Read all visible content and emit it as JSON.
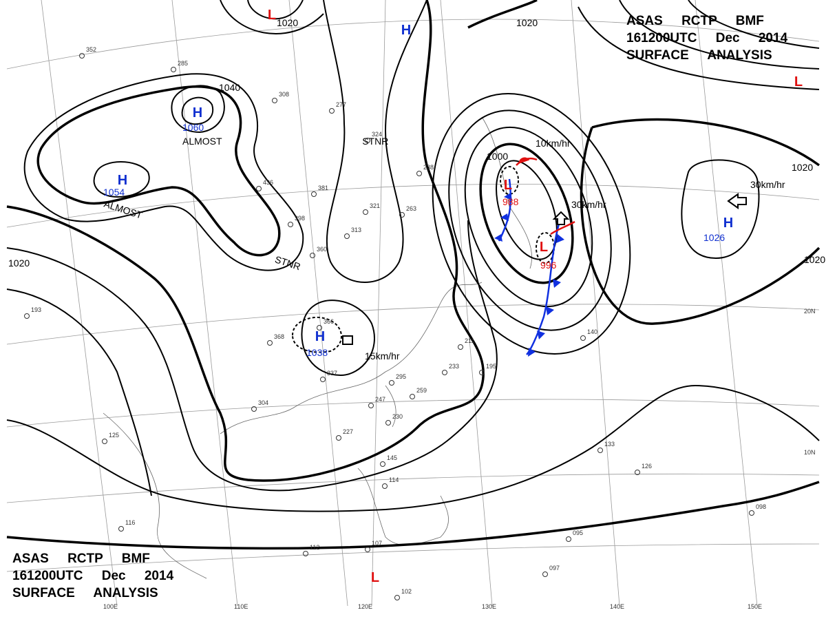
{
  "header_top": [
    "ASAS RCTP BMF",
    "161200UTC Dec 2014",
    "SURFACE ANALYSIS"
  ],
  "header_bottom": [
    "ASAS RCTP BMF",
    "161200UTC Dec 2014",
    "SURFACE ANALYSIS"
  ],
  "pressure_centers": [
    {
      "symbol": "H",
      "value": "1060"
    },
    {
      "symbol": "H",
      "value": "1054"
    },
    {
      "symbol": "H",
      "value": "1038"
    },
    {
      "symbol": "H",
      "value": "1026"
    },
    {
      "symbol": "L",
      "value": "988"
    },
    {
      "symbol": "L",
      "value": "996"
    },
    {
      "symbol": "H"
    },
    {
      "symbol": "L"
    },
    {
      "symbol": "L"
    },
    {
      "symbol": "L"
    }
  ],
  "isobar_labels": [
    "1040",
    "1020",
    "1020",
    "1020",
    "1000",
    "1020",
    "1020"
  ],
  "motion_labels": [
    "10km/hr",
    "30km/hr",
    "30km/hr",
    "15km/hr"
  ],
  "notes": [
    "ALMOST STNR",
    "ALMOST STNR"
  ],
  "longitude_labels": [
    "100E",
    "110E",
    "120E",
    "130E",
    "140E",
    "150E"
  ],
  "latitude_labels": [
    "20N",
    "10N"
  ],
  "stations": [
    "352",
    "285",
    "308",
    "277",
    "324",
    "436",
    "381",
    "398",
    "360",
    "366",
    "368",
    "304",
    "337",
    "295",
    "259",
    "247",
    "230",
    "227",
    "211",
    "233",
    "195",
    "193",
    "125",
    "116",
    "112",
    "107",
    "102",
    "145",
    "114",
    "140",
    "133",
    "126",
    "098",
    "095",
    "097",
    "238",
    "263",
    "321",
    "313"
  ]
}
